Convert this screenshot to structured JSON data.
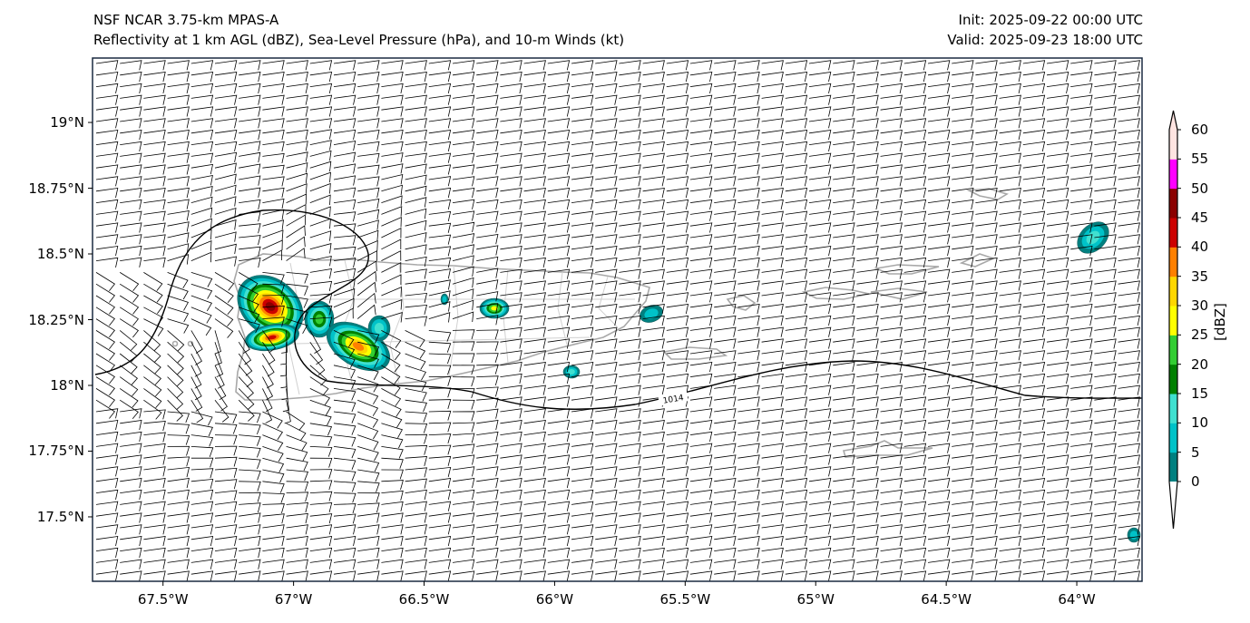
{
  "header": {
    "title_line1": "NSF NCAR 3.75-km MPAS-A",
    "title_line2": "Reflectivity at 1 km AGL (dBZ), Sea-Level Pressure (hPa), and 10-m Winds (kt)",
    "init": "Init: 2025-09-22 00:00 UTC",
    "valid": "Valid: 2025-09-23 18:00 UTC"
  },
  "map": {
    "lon_ticks": [
      "67.5°W",
      "67°W",
      "66.5°W",
      "66°W",
      "65.5°W",
      "65°W",
      "64.5°W",
      "64°W"
    ],
    "lon_values": [
      -67.5,
      -67,
      -66.5,
      -66,
      -65.5,
      -65,
      -64.5,
      -64
    ],
    "lat_ticks": [
      "19°N",
      "18.75°N",
      "18.5°N",
      "18.25°N",
      "18°N",
      "17.75°N",
      "17.5°N"
    ],
    "lat_values": [
      19,
      18.75,
      18.5,
      18.25,
      18,
      17.75,
      17.5
    ],
    "extent": {
      "lon_min": -67.77,
      "lon_max": -63.75,
      "lat_min": 17.255,
      "lat_max": 19.245
    },
    "isobar_label": "1014"
  },
  "colorbar": {
    "label": "[dBZ]",
    "ticks": [
      "0",
      "5",
      "10",
      "15",
      "20",
      "25",
      "30",
      "35",
      "40",
      "45",
      "50",
      "55",
      "60"
    ],
    "colors": [
      "#008080",
      "#00c2c8",
      "#40e0d0",
      "#008000",
      "#32cd32",
      "#ffff00",
      "#ffd700",
      "#ff8000",
      "#cc0000",
      "#8b0000",
      "#ff00ff",
      "#ffe4e1"
    ],
    "under_color": "#ffffff",
    "over_color": "#ffe4e1"
  }
}
